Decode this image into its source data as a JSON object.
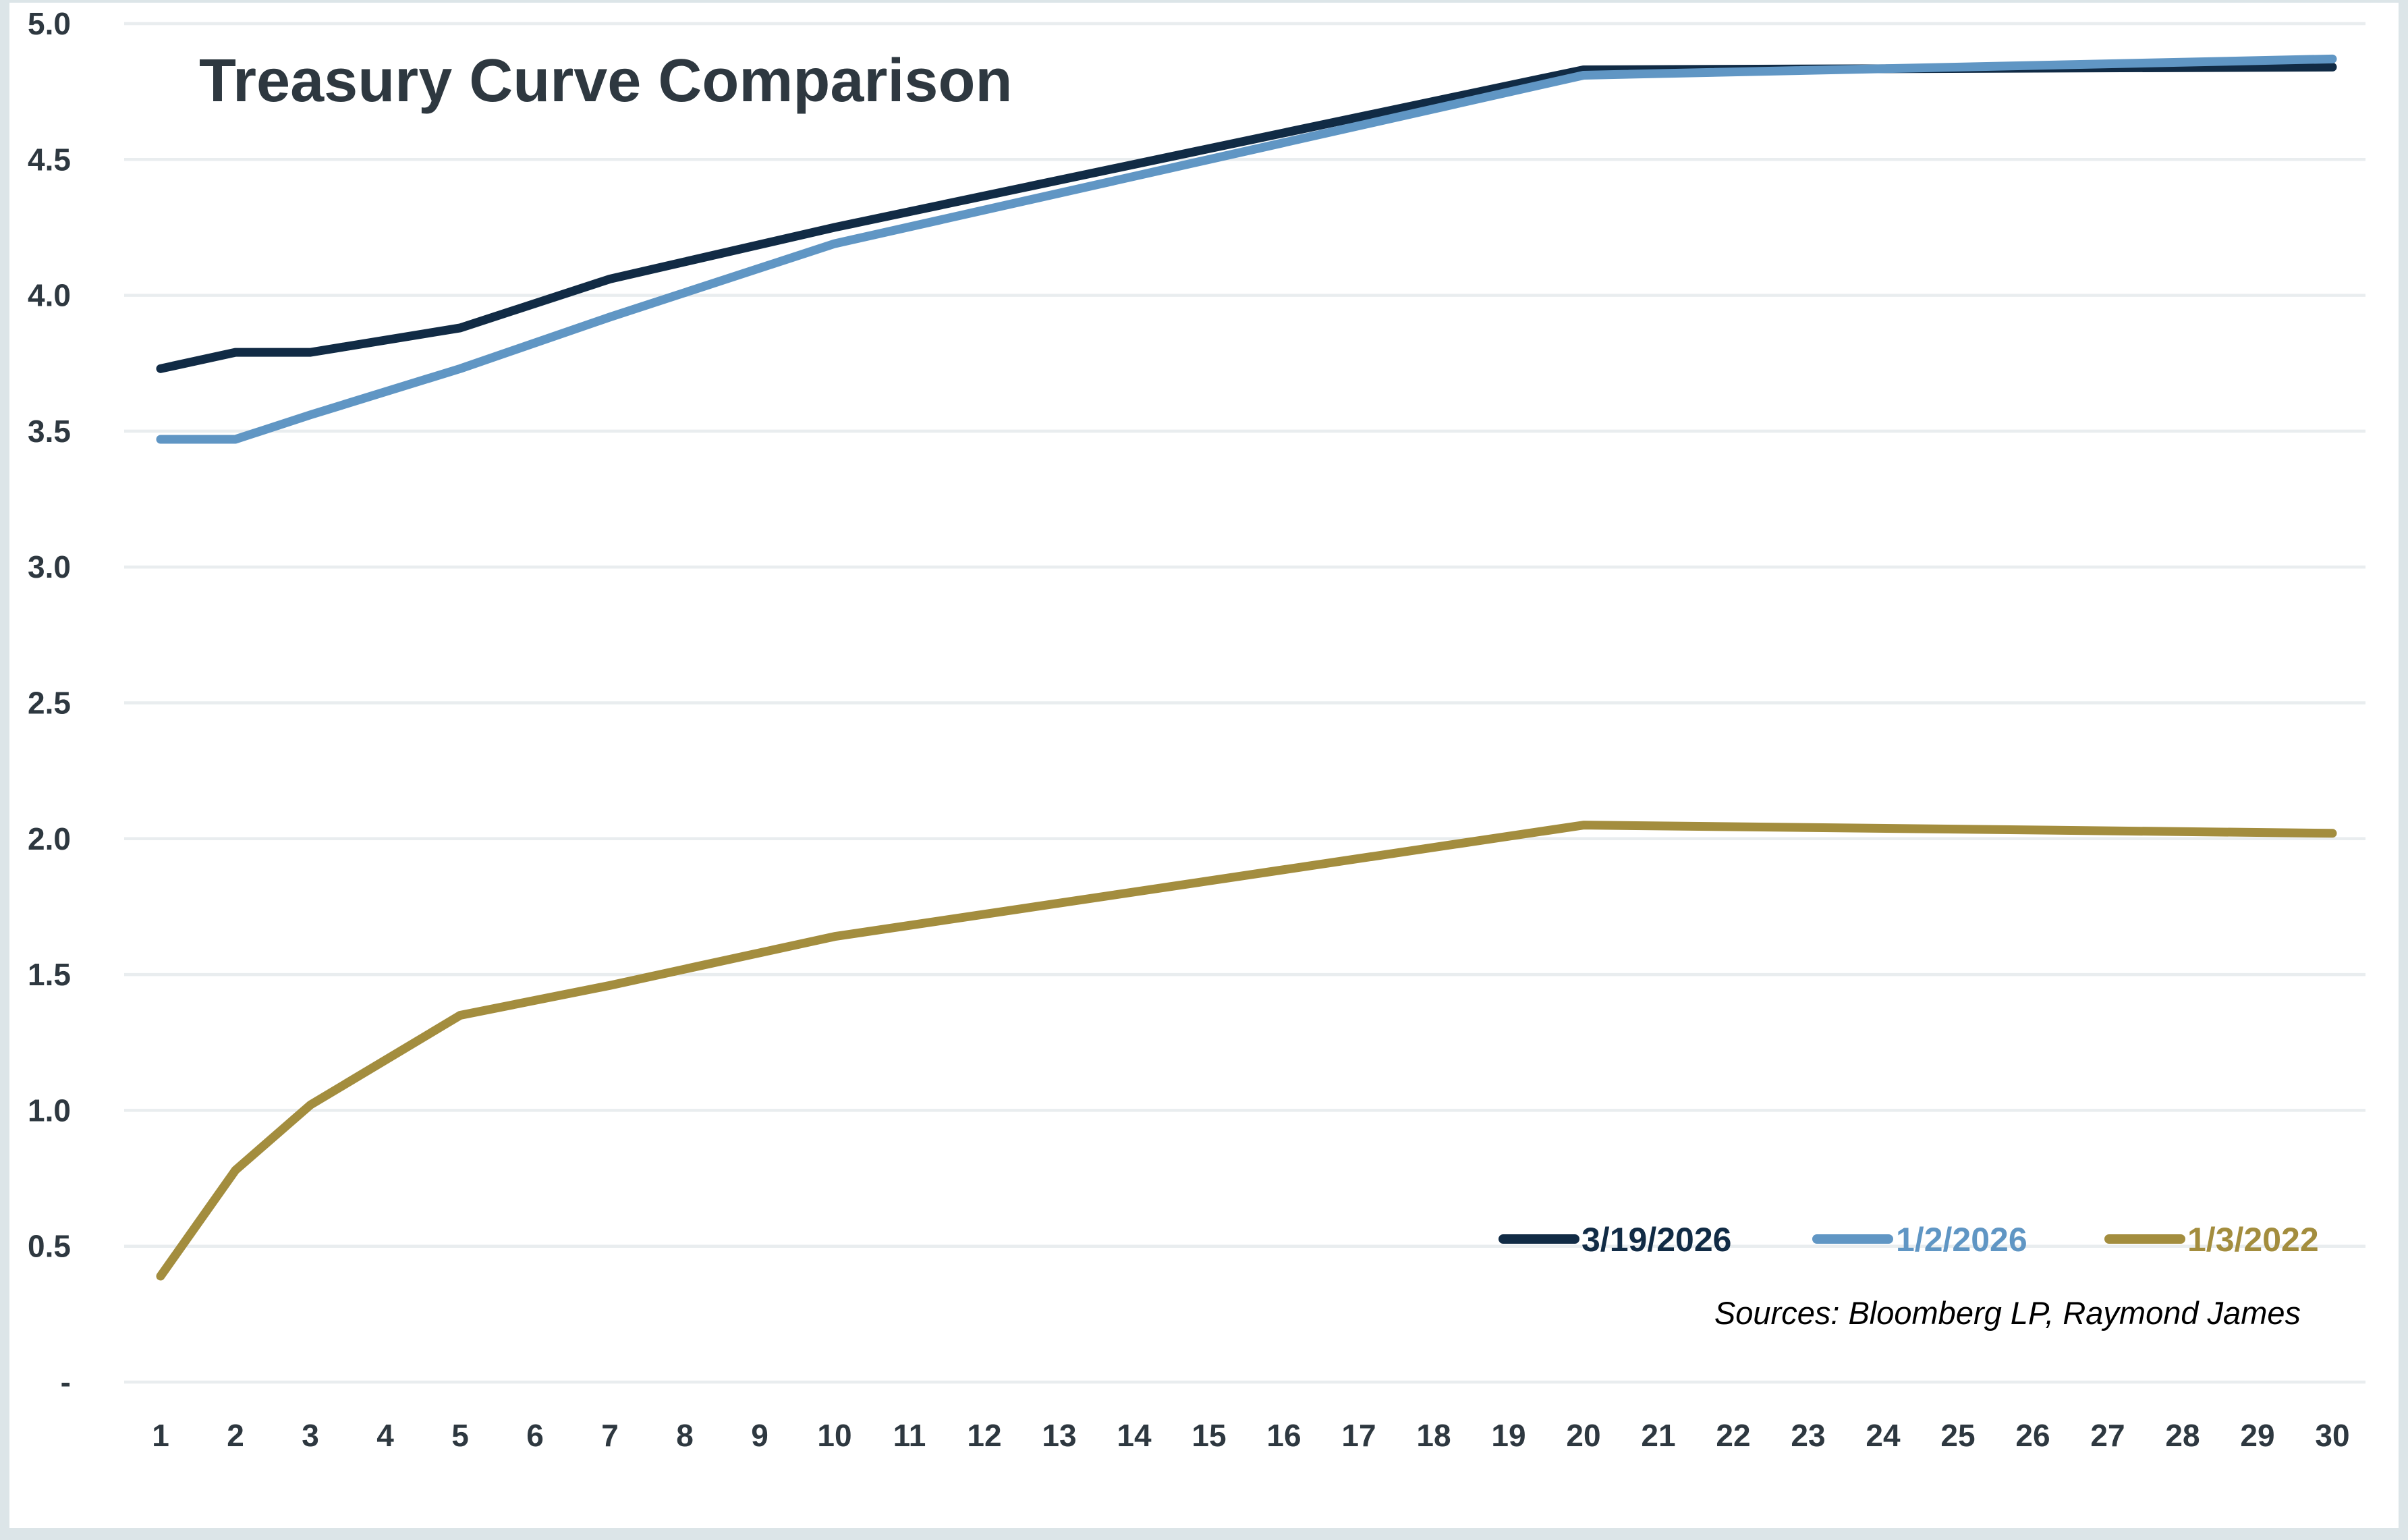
{
  "title": "Treasury Curve Comparison",
  "sources_note": "Sources: Bloomberg LP, Raymond James",
  "colors": {
    "navy": "#112B45",
    "blue": "#6096C4",
    "gold": "#A38D3E",
    "axis_text": "#2E3840",
    "gridline": "#E9EDEF",
    "frame": "#DCE5E8",
    "background": "#FFFFFF",
    "sources_text": "#000000"
  },
  "legend": {
    "position": "bottom-right",
    "items": [
      {
        "label": "3/19/2026",
        "color": "#112B45"
      },
      {
        "label": "1/2/2026",
        "color": "#6096C4"
      },
      {
        "label": "1/3/2022",
        "color": "#A38D3E"
      }
    ]
  },
  "chart_data": {
    "type": "line",
    "title": "Treasury Curve Comparison",
    "xlabel": "",
    "ylabel": "",
    "x": [
      1,
      2,
      3,
      5,
      7,
      10,
      20,
      30
    ],
    "series": [
      {
        "name": "3/19/2026",
        "color": "#112B45",
        "values": [
          3.73,
          3.79,
          3.79,
          3.88,
          4.06,
          4.25,
          4.83,
          4.84
        ]
      },
      {
        "name": "1/2/2026",
        "color": "#6096C4",
        "values": [
          3.47,
          3.47,
          3.56,
          3.73,
          3.92,
          4.19,
          4.81,
          4.87
        ]
      },
      {
        "name": "1/3/2022",
        "color": "#A38D3E",
        "values": [
          0.39,
          0.78,
          1.02,
          1.35,
          1.46,
          1.64,
          2.05,
          2.02
        ]
      }
    ],
    "x_ticks": [
      1,
      2,
      3,
      4,
      5,
      6,
      7,
      8,
      9,
      10,
      11,
      12,
      13,
      14,
      15,
      16,
      17,
      18,
      19,
      20,
      21,
      22,
      23,
      24,
      25,
      26,
      27,
      28,
      29,
      30
    ],
    "y_ticks": [
      {
        "value": 5.0,
        "label": "5.0"
      },
      {
        "value": 4.5,
        "label": "4.5"
      },
      {
        "value": 4.0,
        "label": "4.0"
      },
      {
        "value": 3.5,
        "label": "3.5"
      },
      {
        "value": 3.0,
        "label": "3.0"
      },
      {
        "value": 2.5,
        "label": "2.5"
      },
      {
        "value": 2.0,
        "label": "2.0"
      },
      {
        "value": 1.5,
        "label": "1.5"
      },
      {
        "value": 1.0,
        "label": "1.0"
      },
      {
        "value": 0.5,
        "label": "0.5"
      },
      {
        "value": 0.0,
        "label": "-"
      }
    ],
    "xlim": [
      1,
      30
    ],
    "ylim": [
      0,
      5
    ],
    "grid": "horizontal",
    "legend_position": "bottom-right"
  }
}
